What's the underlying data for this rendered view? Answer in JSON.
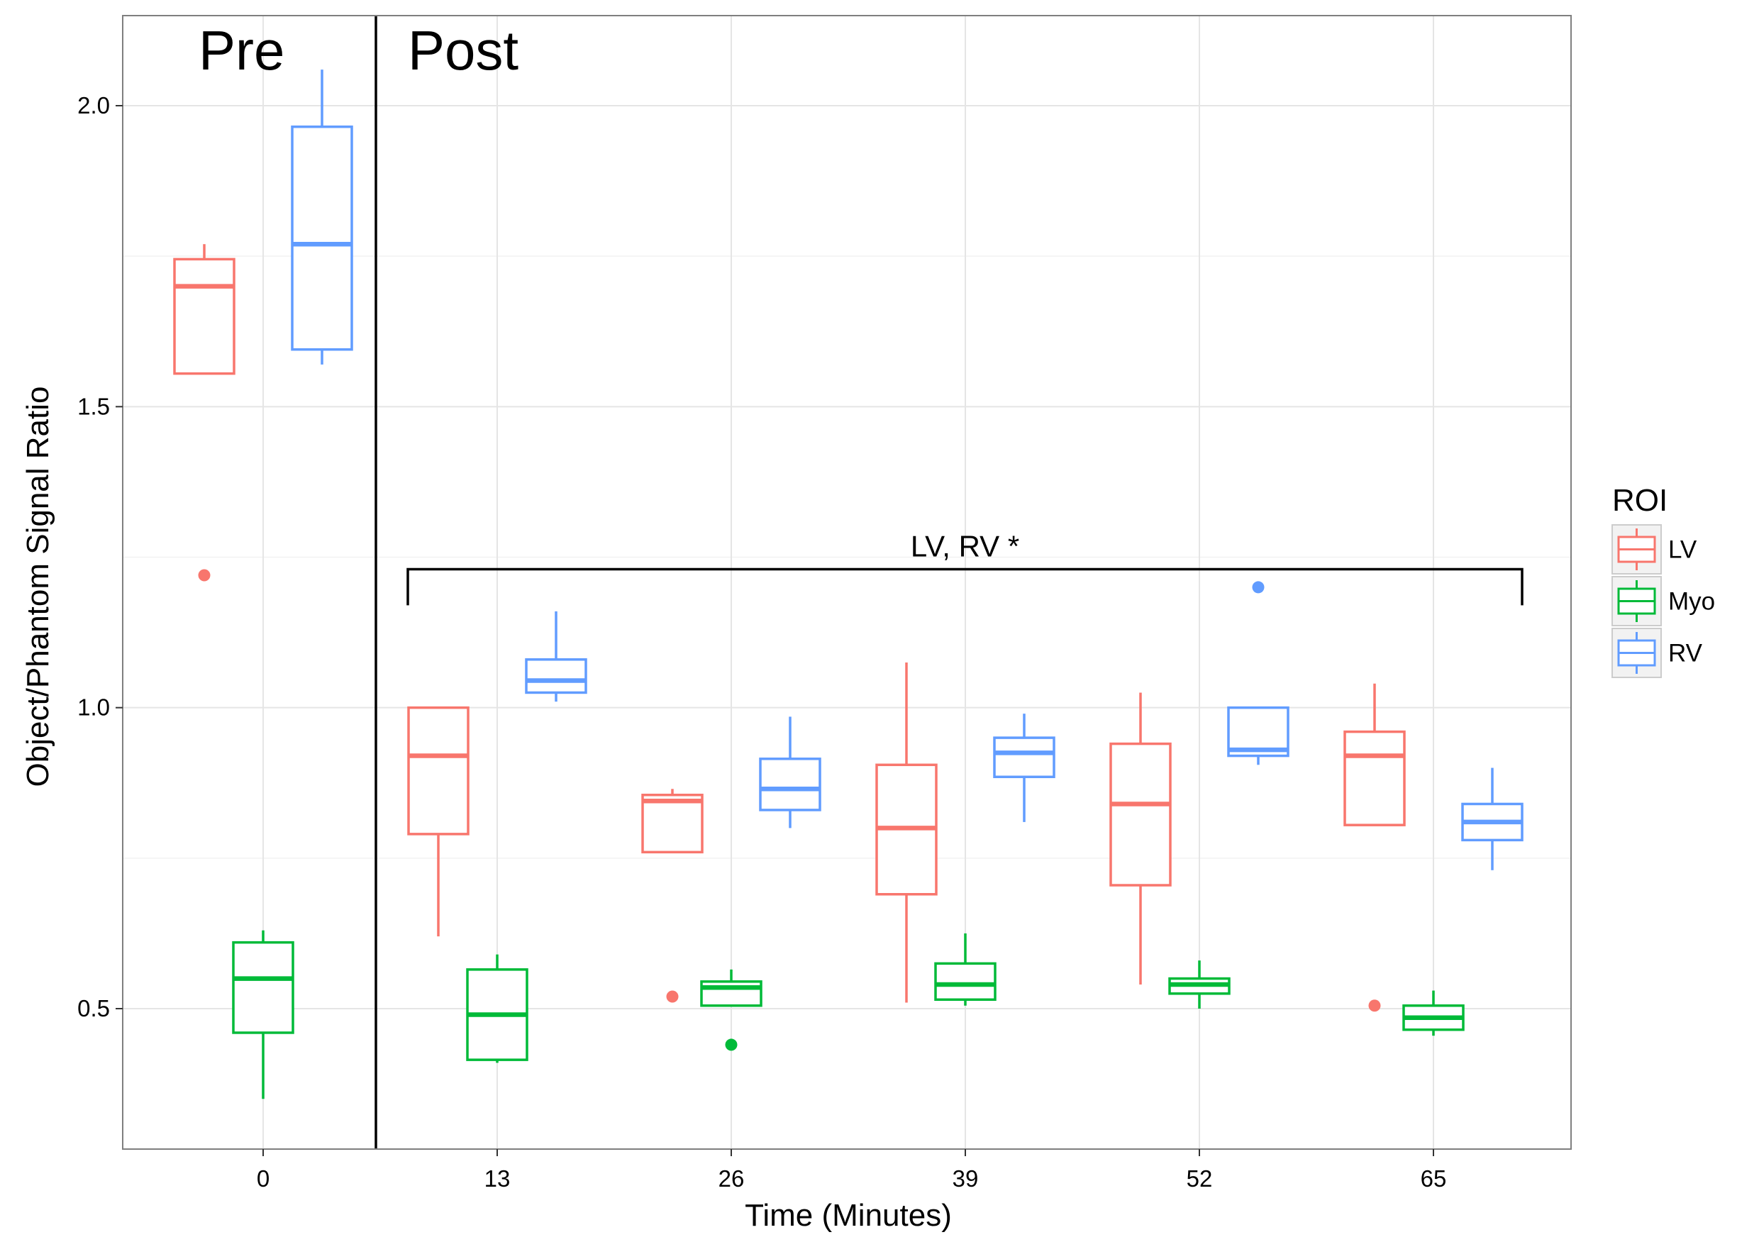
{
  "chart_data": {
    "type": "boxplot",
    "xlabel": "Time (Minutes)",
    "ylabel": "Object/Phantom Signal Ratio",
    "ylim": [
      0.3,
      2.15
    ],
    "yticks": [
      0.5,
      1.0,
      1.5,
      2.0
    ],
    "ytick_labels": [
      "0.5",
      "1.0",
      "1.5",
      "2.0"
    ],
    "grid": true,
    "categories": [
      "0",
      "13",
      "26",
      "39",
      "52",
      "65"
    ],
    "phase_divider_after_category": 0,
    "phase_labels": {
      "pre": "Pre",
      "post": "Post"
    },
    "legend": {
      "title": "ROI",
      "position": "right"
    },
    "annotation": {
      "text": "LV, RV *",
      "y": 1.23,
      "bracket_drop_to": 1.17
    },
    "colors": {
      "LV": "#F8766D",
      "Myo": "#00BA38",
      "RV": "#619CFF"
    },
    "series": [
      {
        "name": "LV",
        "boxes": [
          {
            "whisker_low": 1.555,
            "q1": 1.555,
            "median": 1.7,
            "q3": 1.745,
            "whisker_high": 1.77,
            "outliers": [
              1.22
            ]
          },
          {
            "whisker_low": 0.62,
            "q1": 0.79,
            "median": 0.92,
            "q3": 1.0,
            "whisker_high": 1.0,
            "outliers": []
          },
          {
            "whisker_low": 0.76,
            "q1": 0.76,
            "median": 0.845,
            "q3": 0.855,
            "whisker_high": 0.865,
            "outliers": [
              0.52
            ]
          },
          {
            "whisker_low": 0.51,
            "q1": 0.69,
            "median": 0.8,
            "q3": 0.905,
            "whisker_high": 1.075,
            "outliers": []
          },
          {
            "whisker_low": 0.54,
            "q1": 0.705,
            "median": 0.84,
            "q3": 0.94,
            "whisker_high": 1.025,
            "outliers": []
          },
          {
            "whisker_low": 0.805,
            "q1": 0.805,
            "median": 0.92,
            "q3": 0.96,
            "whisker_high": 1.04,
            "outliers": [
              0.505
            ]
          }
        ]
      },
      {
        "name": "Myo",
        "boxes": [
          {
            "whisker_low": 0.35,
            "q1": 0.46,
            "median": 0.55,
            "q3": 0.61,
            "whisker_high": 0.63,
            "outliers": []
          },
          {
            "whisker_low": 0.41,
            "q1": 0.415,
            "median": 0.49,
            "q3": 0.565,
            "whisker_high": 0.59,
            "outliers": []
          },
          {
            "whisker_low": 0.505,
            "q1": 0.505,
            "median": 0.535,
            "q3": 0.545,
            "whisker_high": 0.565,
            "outliers": [
              0.44
            ]
          },
          {
            "whisker_low": 0.505,
            "q1": 0.515,
            "median": 0.54,
            "q3": 0.575,
            "whisker_high": 0.625,
            "outliers": []
          },
          {
            "whisker_low": 0.5,
            "q1": 0.525,
            "median": 0.54,
            "q3": 0.55,
            "whisker_high": 0.58,
            "outliers": []
          },
          {
            "whisker_low": 0.455,
            "q1": 0.465,
            "median": 0.485,
            "q3": 0.505,
            "whisker_high": 0.53,
            "outliers": []
          }
        ]
      },
      {
        "name": "RV",
        "boxes": [
          {
            "whisker_low": 1.57,
            "q1": 1.595,
            "median": 1.77,
            "q3": 1.965,
            "whisker_high": 2.06,
            "outliers": []
          },
          {
            "whisker_low": 1.01,
            "q1": 1.025,
            "median": 1.045,
            "q3": 1.08,
            "whisker_high": 1.16,
            "outliers": []
          },
          {
            "whisker_low": 0.8,
            "q1": 0.83,
            "median": 0.865,
            "q3": 0.915,
            "whisker_high": 0.985,
            "outliers": []
          },
          {
            "whisker_low": 0.81,
            "q1": 0.885,
            "median": 0.925,
            "q3": 0.95,
            "whisker_high": 0.99,
            "outliers": []
          },
          {
            "whisker_low": 0.905,
            "q1": 0.92,
            "median": 0.93,
            "q3": 1.0,
            "whisker_high": 1.0,
            "outliers": [
              1.2
            ]
          },
          {
            "whisker_low": 0.73,
            "q1": 0.78,
            "median": 0.81,
            "q3": 0.84,
            "whisker_high": 0.9,
            "outliers": []
          }
        ]
      }
    ]
  }
}
